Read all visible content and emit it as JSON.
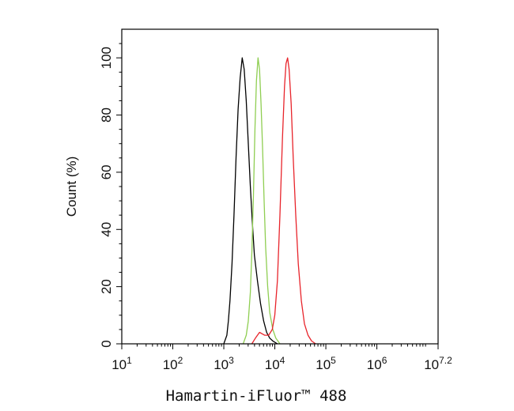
{
  "chart_data": {
    "type": "line",
    "title": "",
    "xlabel": "Hamartin-iFluor™ 488",
    "ylabel": "Count (%)",
    "x_scale": "log",
    "xlim": [
      1,
      7.2
    ],
    "ylim": [
      0,
      110
    ],
    "grid": false,
    "x_ticks": [
      {
        "value": 1,
        "base": "10",
        "exp": "1"
      },
      {
        "value": 2,
        "base": "10",
        "exp": "2"
      },
      {
        "value": 3,
        "base": "10",
        "exp": "3"
      },
      {
        "value": 4,
        "base": "10",
        "exp": "4"
      },
      {
        "value": 5,
        "base": "10",
        "exp": "5"
      },
      {
        "value": 6,
        "base": "10",
        "exp": "6"
      },
      {
        "value": 7.2,
        "base": "10",
        "exp": "7.2"
      }
    ],
    "y_ticks": [
      {
        "value": 0,
        "label": "0"
      },
      {
        "value": 20,
        "label": "20"
      },
      {
        "value": 40,
        "label": "40"
      },
      {
        "value": 60,
        "label": "60"
      },
      {
        "value": 80,
        "label": "80"
      },
      {
        "value": 100,
        "label": "100"
      }
    ],
    "series": [
      {
        "color": "#000000",
        "points": [
          [
            3.0,
            0
          ],
          [
            3.06,
            3
          ],
          [
            3.09,
            8
          ],
          [
            3.12,
            15
          ],
          [
            3.16,
            28
          ],
          [
            3.2,
            45
          ],
          [
            3.24,
            65
          ],
          [
            3.28,
            82
          ],
          [
            3.32,
            93
          ],
          [
            3.36,
            100
          ],
          [
            3.4,
            96
          ],
          [
            3.44,
            85
          ],
          [
            3.48,
            70
          ],
          [
            3.52,
            55
          ],
          [
            3.56,
            42
          ],
          [
            3.6,
            31
          ],
          [
            3.66,
            22
          ],
          [
            3.72,
            14
          ],
          [
            3.78,
            8
          ],
          [
            3.84,
            4
          ],
          [
            3.9,
            2
          ],
          [
            3.96,
            1
          ],
          [
            4.05,
            0
          ]
        ]
      },
      {
        "color": "#8fce52",
        "points": [
          [
            3.38,
            0
          ],
          [
            3.44,
            3
          ],
          [
            3.48,
            8
          ],
          [
            3.52,
            18
          ],
          [
            3.55,
            32
          ],
          [
            3.58,
            52
          ],
          [
            3.61,
            75
          ],
          [
            3.64,
            92
          ],
          [
            3.67,
            100
          ],
          [
            3.7,
            96
          ],
          [
            3.73,
            84
          ],
          [
            3.76,
            68
          ],
          [
            3.79,
            50
          ],
          [
            3.82,
            34
          ],
          [
            3.86,
            20
          ],
          [
            3.9,
            11
          ],
          [
            3.96,
            5
          ],
          [
            4.02,
            2
          ],
          [
            4.1,
            0
          ]
        ]
      },
      {
        "color": "#e8242b",
        "points": [
          [
            3.55,
            0
          ],
          [
            3.62,
            2
          ],
          [
            3.7,
            4
          ],
          [
            3.8,
            3
          ],
          [
            3.88,
            3
          ],
          [
            3.95,
            5
          ],
          [
            4.0,
            10
          ],
          [
            4.05,
            22
          ],
          [
            4.1,
            45
          ],
          [
            4.15,
            72
          ],
          [
            4.19,
            90
          ],
          [
            4.22,
            98
          ],
          [
            4.25,
            100
          ],
          [
            4.28,
            96
          ],
          [
            4.32,
            84
          ],
          [
            4.36,
            65
          ],
          [
            4.41,
            45
          ],
          [
            4.46,
            28
          ],
          [
            4.52,
            15
          ],
          [
            4.58,
            7
          ],
          [
            4.65,
            3
          ],
          [
            4.72,
            1
          ],
          [
            4.8,
            0
          ]
        ]
      }
    ]
  }
}
